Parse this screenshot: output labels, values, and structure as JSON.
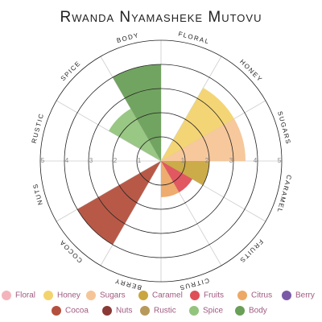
{
  "chart_data": {
    "type": "polar-area",
    "title": "Rwanda Nyamasheke Mutovu",
    "categories": [
      "Floral",
      "Honey",
      "Sugars",
      "Caramel",
      "Fruits",
      "Citrus",
      "Berry",
      "Cocoa",
      "Nuts",
      "Rustic",
      "Spice",
      "Body"
    ],
    "labels": [
      "FLORAL",
      "HONEY",
      "SUGARS",
      "CARAMEL",
      "FRUITS",
      "CITRUS",
      "BERRY",
      "COCOA",
      "NUTS",
      "RUSTIC",
      "SPICE",
      "BODY"
    ],
    "values": [
      0,
      3.5,
      3.5,
      2,
      1.5,
      1.5,
      0,
      4,
      0,
      0,
      2.5,
      4
    ],
    "colors": [
      "#f3b5bb",
      "#f3d36e",
      "#f5c597",
      "#c9a63f",
      "#df4f57",
      "#eda866",
      "#7a5aa6",
      "#b4503d",
      "#8a3936",
      "#b7995a",
      "#93c47d",
      "#6a9f58"
    ],
    "rlim": [
      0,
      5
    ],
    "rticks": [
      1,
      2,
      3,
      4,
      5
    ]
  }
}
